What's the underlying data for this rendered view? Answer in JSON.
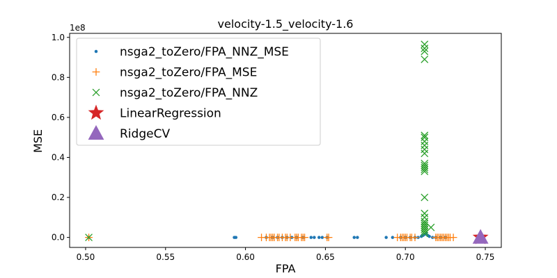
{
  "chart_data": {
    "type": "scatter",
    "title": "velocity-1.5_velocity-1.6",
    "xlabel": "FPA",
    "ylabel": "MSE",
    "y_offset_label": "1e8",
    "xlim": [
      0.49,
      0.76
    ],
    "ylim": [
      -0.05,
      1.02
    ],
    "xticks": [
      0.5,
      0.55,
      0.6,
      0.65,
      0.7,
      0.75
    ],
    "xtick_labels": [
      "0.50",
      "0.55",
      "0.60",
      "0.65",
      "0.70",
      "0.75"
    ],
    "yticks": [
      0.0,
      0.2,
      0.4,
      0.6,
      0.8,
      1.0
    ],
    "ytick_labels": [
      "0.0",
      "0.2",
      "0.4",
      "0.6",
      "0.8",
      "1.0"
    ],
    "legend_position": "top-left",
    "series": [
      {
        "name": "nsga2_toZero/FPA_NNZ_MSE",
        "marker": "dot",
        "color": "#1f77b4",
        "x": [
          0.502,
          0.593,
          0.594,
          0.613,
          0.617,
          0.62,
          0.623,
          0.626,
          0.629,
          0.632,
          0.636,
          0.641,
          0.643,
          0.646,
          0.648,
          0.651,
          0.668,
          0.67,
          0.688,
          0.692,
          0.697,
          0.7,
          0.703,
          0.706,
          0.708,
          0.71,
          0.711,
          0.712,
          0.713,
          0.714,
          0.715,
          0.717,
          0.719,
          0.722,
          0.725
        ],
        "y": [
          0.0,
          0.0,
          0.0,
          0.0,
          0.0,
          0.0,
          0.0,
          0.0,
          0.0,
          0.0,
          0.0,
          0.0,
          0.0,
          0.0,
          0.0,
          0.0,
          0.0,
          0.0,
          0.0,
          0.0,
          0.0,
          0.0,
          0.0,
          0.0,
          0.0,
          0.005,
          0.01,
          0.015,
          0.02,
          0.01,
          0.005,
          0.0,
          0.0,
          0.0,
          0.0
        ]
      },
      {
        "name": "nsga2_toZero/FPA_MSE",
        "marker": "plus",
        "color": "#ff7f0e",
        "x": [
          0.502,
          0.61,
          0.613,
          0.615,
          0.616,
          0.617,
          0.618,
          0.62,
          0.621,
          0.623,
          0.625,
          0.626,
          0.628,
          0.631,
          0.632,
          0.633,
          0.635,
          0.636,
          0.637,
          0.651,
          0.652,
          0.695,
          0.697,
          0.698,
          0.699,
          0.7,
          0.701,
          0.703,
          0.704,
          0.706,
          0.719,
          0.72,
          0.721,
          0.722,
          0.723,
          0.724,
          0.725,
          0.726,
          0.727,
          0.728,
          0.73
        ],
        "y": [
          0.0,
          0.0,
          0.0,
          0.0,
          0.0,
          0.0,
          0.0,
          0.0,
          0.0,
          0.0,
          0.0,
          0.0,
          0.0,
          0.0,
          0.0,
          0.0,
          0.0,
          0.0,
          0.0,
          0.0,
          0.0,
          0.0,
          0.0,
          0.0,
          0.0,
          0.0,
          0.0,
          0.0,
          0.0,
          0.0,
          0.0,
          0.0,
          0.0,
          0.0,
          0.0,
          0.0,
          0.0,
          0.0,
          0.0,
          0.0,
          0.0
        ]
      },
      {
        "name": "nsga2_toZero/FPA_NNZ",
        "marker": "x",
        "color": "#2ca02c",
        "x": [
          0.502,
          0.712,
          0.712,
          0.712,
          0.712,
          0.712,
          0.712,
          0.712,
          0.712,
          0.712,
          0.712,
          0.712,
          0.712,
          0.712,
          0.712,
          0.712,
          0.712,
          0.712,
          0.712,
          0.712,
          0.712,
          0.712,
          0.712,
          0.712,
          0.712,
          0.712,
          0.716
        ],
        "y": [
          0.0,
          0.965,
          0.945,
          0.93,
          0.89,
          0.51,
          0.5,
          0.48,
          0.46,
          0.44,
          0.42,
          0.37,
          0.36,
          0.35,
          0.34,
          0.33,
          0.2,
          0.12,
          0.1,
          0.08,
          0.07,
          0.06,
          0.05,
          0.04,
          0.03,
          0.02,
          0.05
        ]
      },
      {
        "name": "LinearRegression",
        "marker": "star",
        "color": "#d62728",
        "x": [
          0.747
        ],
        "y": [
          0.0
        ]
      },
      {
        "name": "RidgeCV",
        "marker": "triangle",
        "color": "#9467bd",
        "x": [
          0.747
        ],
        "y": [
          0.0
        ]
      }
    ]
  }
}
